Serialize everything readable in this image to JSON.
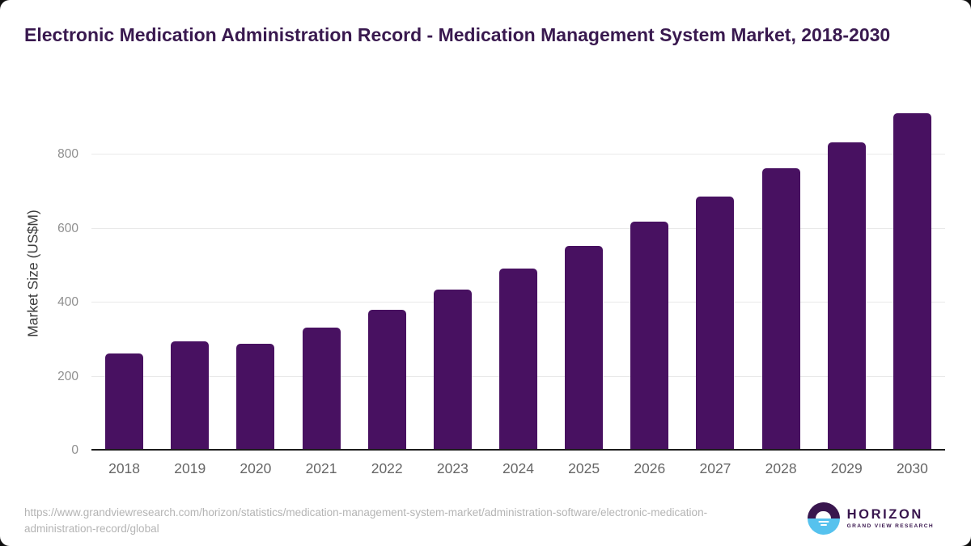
{
  "chart_data": {
    "type": "bar",
    "title": "Electronic Medication Administration Record - Medication Management System Market, 2018-2030",
    "categories": [
      "2018",
      "2019",
      "2020",
      "2021",
      "2022",
      "2023",
      "2024",
      "2025",
      "2026",
      "2027",
      "2028",
      "2029",
      "2030"
    ],
    "values": [
      260,
      292,
      286,
      331,
      379,
      432,
      490,
      551,
      617,
      684,
      760,
      832,
      909
    ],
    "xlabel": "",
    "ylabel": "Market Size (US$M)",
    "yticks": [
      0,
      200,
      400,
      600,
      800
    ],
    "ylim": [
      0,
      925
    ],
    "grid": "horizontal",
    "legend": "none",
    "bar_color": "#481161"
  },
  "footer": {
    "source_url": "https://www.grandviewresearch.com/horizon/statistics/medication-management-system-market/administration-software/electronic-medication-administration-record/global"
  },
  "logo": {
    "brand": "HORIZON",
    "subbrand": "GRAND VIEW RESEARCH"
  },
  "colors": {
    "title_text": "#39194f",
    "bar": "#481161",
    "axis_line": "#1c1c1c",
    "gridline": "#e9e9e9",
    "tick_text": "#8f8f8f",
    "x_label_text": "#666666",
    "url_text": "#b4b4b4",
    "logo_purple": "#39164e",
    "logo_blue": "#56c2ee"
  }
}
